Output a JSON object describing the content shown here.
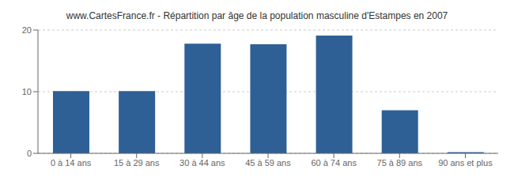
{
  "chart_data": {
    "type": "bar",
    "title": "www.CartesFrance.fr - Répartition par âge de la population masculine d'Estampes en 2007",
    "categories": [
      "0 à 14 ans",
      "15 à 29 ans",
      "30 à 44 ans",
      "45 à 59 ans",
      "60 à 74 ans",
      "75 à 89 ans",
      "90 ans et plus"
    ],
    "values": [
      10.1,
      10.1,
      17.8,
      17.7,
      19.1,
      7.0,
      0.2
    ],
    "color": "#2e6096",
    "ylim": [
      0,
      20
    ],
    "yticks": [
      0,
      10,
      20
    ],
    "grid": true
  }
}
